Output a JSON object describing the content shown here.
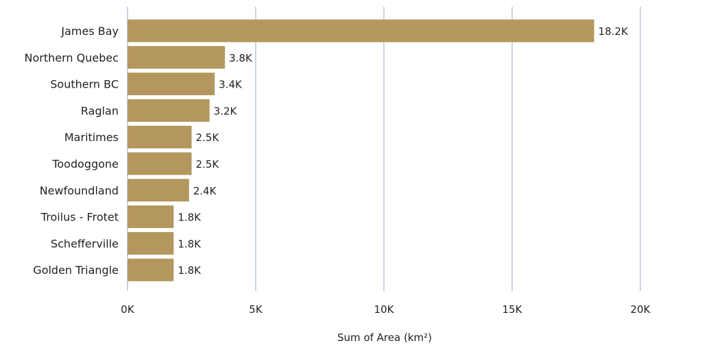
{
  "chart_data": {
    "type": "bar",
    "orientation": "horizontal",
    "categories": [
      "James Bay",
      "Northern Quebec",
      "Southern BC",
      "Raglan",
      "Maritimes",
      "Toodoggone",
      "Newfoundland",
      "Troilus - Frotet",
      "Schefferville",
      "Golden Triangle"
    ],
    "values": [
      18200,
      3800,
      3400,
      3200,
      2500,
      2500,
      2400,
      1800,
      1800,
      1800
    ],
    "data_labels": [
      "18.2K",
      "3.8K",
      "3.4K",
      "3.2K",
      "2.5K",
      "2.5K",
      "2.4K",
      "1.8K",
      "1.8K",
      "1.8K"
    ],
    "xlim": [
      0,
      20000
    ],
    "xticks": [
      0,
      5000,
      10000,
      15000,
      20000
    ],
    "xtick_labels": [
      "0K",
      "5K",
      "10K",
      "15K",
      "20K"
    ],
    "xlabel": "Sum of Area (km²)",
    "ylabel": "",
    "grid": "vertical",
    "colors": {
      "bar": "#b3975e",
      "grid": "#a7b6cf"
    }
  }
}
